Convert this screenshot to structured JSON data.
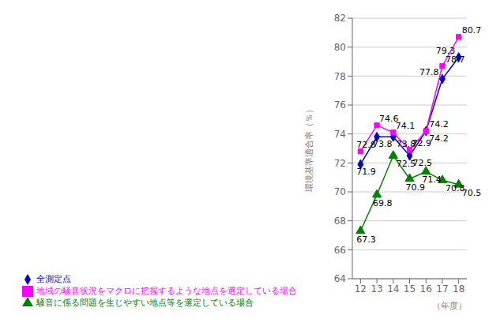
{
  "chart_data": {
    "type": "line",
    "x": [
      12,
      13,
      14,
      15,
      16,
      17,
      18
    ],
    "series": [
      {
        "name": "全測定点",
        "color": "#0000cc",
        "marker": "diamond",
        "values": [
          71.9,
          73.8,
          73.8,
          72.5,
          74.2,
          77.8,
          79.3
        ]
      },
      {
        "name": "地域の騒音状況をマクロに把握するような地点を選定している場合",
        "color": "#ff00ff",
        "marker": "square",
        "values": [
          72.8,
          74.6,
          74.1,
          72.9,
          74.2,
          78.7,
          80.7
        ]
      },
      {
        "name": "騒音に係る問題を生じやすい地点等を選定している場合",
        "color": "#008000",
        "marker": "triangle",
        "values": [
          67.3,
          69.8,
          72.5,
          70.9,
          71.4,
          70.8,
          70.5
        ]
      }
    ],
    "xlabel": "（年度）",
    "ylabel": "環境基準適合率（％）",
    "xlim": [
      11.5,
      18.5
    ],
    "xticks": [
      12,
      13,
      14,
      15,
      16,
      17,
      18
    ],
    "ylim": [
      64,
      82
    ],
    "yticks": [
      64,
      66,
      68,
      70,
      72,
      74,
      76,
      78,
      80,
      82
    ],
    "grid": true,
    "data_labels": true,
    "legend": "lower left"
  }
}
